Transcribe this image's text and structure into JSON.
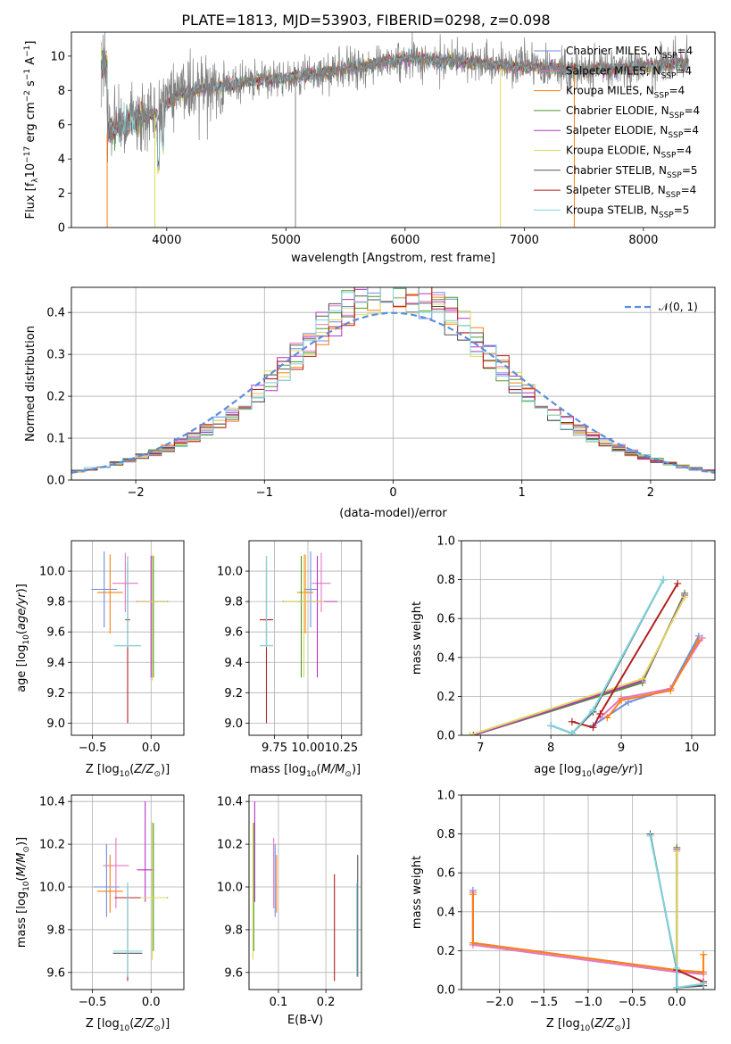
{
  "title": "PLATE=1813, MJD=53903, FIBERID=0298, z=0.098",
  "colors": {
    "Chabrier MILES": "#6b8ee0",
    "Salpeter MILES": "#e377c2",
    "Kroupa MILES": "#ff7f0e",
    "Chabrier ELODIE": "#4e9a2a",
    "Salpeter ELODIE": "#b533c8",
    "Kroupa ELODIE": "#dbdb5a",
    "Chabrier STELIB": "#555555",
    "Salpeter STELIB": "#b22020",
    "Kroupa STELIB": "#7fd4de"
  },
  "legend_spectrum": [
    {
      "label": "Chabrier MILES, N_SSP=4",
      "color": "#6b8ee0"
    },
    {
      "label": "Salpeter MILES, N_SSP=4",
      "color": "#e377c2"
    },
    {
      "label": "Kroupa MILES, N_SSP=4",
      "color": "#ff7f0e"
    },
    {
      "label": "Chabrier ELODIE, N_SSP=4",
      "color": "#4e9a2a"
    },
    {
      "label": "Salpeter ELODIE, N_SSP=4",
      "color": "#b533c8"
    },
    {
      "label": "Kroupa ELODIE, N_SSP=4",
      "color": "#dbdb5a"
    },
    {
      "label": "Chabrier STELIB, N_SSP=5",
      "color": "#555555"
    },
    {
      "label": "Salpeter STELIB, N_SSP=4",
      "color": "#b22020"
    },
    {
      "label": "Kroupa STELIB, N_SSP=5",
      "color": "#7fd4de"
    }
  ],
  "chart_data": [
    {
      "id": "spectrum",
      "type": "line",
      "title": "PLATE=1813, MJD=53903, FIBERID=0298, z=0.098",
      "xlabel": "wavelength [Angstrom, rest frame]",
      "ylabel": "Flux [fλ10^-17 erg cm^-2 s^-1 A^-1]",
      "xlim": [
        3200,
        8600
      ],
      "ylim": [
        0,
        11.4
      ],
      "xticks": [
        4000,
        5000,
        6000,
        7000,
        8000
      ],
      "yticks": [
        0,
        2,
        4,
        6,
        8,
        10
      ],
      "series_profile": {
        "x": [
          3500,
          3700,
          3900,
          4100,
          4300,
          4500,
          4800,
          5100,
          5400,
          5700,
          6000,
          6300,
          6600,
          6900,
          7200,
          7500,
          7800,
          8100,
          8350
        ],
        "y": [
          5.6,
          6.3,
          6.6,
          7.8,
          8.1,
          8.3,
          8.6,
          8.8,
          9.1,
          9.5,
          9.9,
          9.7,
          9.6,
          9.4,
          9.3,
          9.2,
          9.3,
          9.5,
          9.6
        ]
      },
      "data_xrange": [
        3450,
        8380
      ]
    },
    {
      "id": "residuals",
      "type": "line",
      "xlabel": "(data-model)/error",
      "ylabel": "Normed distribution",
      "xlim": [
        -2.5,
        2.5
      ],
      "ylim": [
        0,
        0.46
      ],
      "xticks": [
        -2,
        -1,
        0,
        1,
        2
      ],
      "yticks": [
        0.0,
        0.1,
        0.2,
        0.3,
        0.4
      ],
      "legend": "N(0,1)",
      "gaussian": {
        "mu": 0,
        "sigma": 1,
        "color": "#5b8ee0"
      }
    },
    {
      "id": "age_vs_Z",
      "type": "scatter",
      "xlabel": "Z [log10(Z/Z⊙)]",
      "ylabel": "age  [log10(age/yr)]",
      "xlim": [
        -0.68,
        0.28
      ],
      "ylim": [
        8.92,
        10.2
      ],
      "xticks": [
        -0.5,
        0.0
      ],
      "yticks": [
        9.0,
        9.2,
        9.4,
        9.6,
        9.8,
        10.0
      ],
      "points": [
        {
          "s": "Chabrier MILES",
          "x": -0.4,
          "y": 9.88,
          "xe": 0.22,
          "ye": [
            9.63,
            10.13
          ]
        },
        {
          "s": "Salpeter MILES",
          "x": -0.22,
          "y": 9.92,
          "xe": 0.22,
          "ye": [
            9.73,
            10.12
          ]
        },
        {
          "s": "Kroupa MILES",
          "x": -0.35,
          "y": 9.86,
          "xe": 0.22,
          "ye": [
            9.59,
            10.11
          ]
        },
        {
          "s": "Chabrier ELODIE",
          "x": 0.02,
          "y": 9.8,
          "xe": 0.25,
          "ye": [
            9.3,
            10.1
          ]
        },
        {
          "s": "Salpeter ELODIE",
          "x": 0.0,
          "y": 9.8,
          "xe": 0.25,
          "ye": [
            9.3,
            10.1
          ]
        },
        {
          "s": "Kroupa ELODIE",
          "x": 0.01,
          "y": 9.8,
          "xe": 0.25,
          "ye": [
            9.28,
            10.11
          ]
        },
        {
          "s": "Chabrier STELIB",
          "x": -0.2,
          "y": 9.51,
          "xe": 0.22,
          "ye": [
            9.5,
            10.1
          ]
        },
        {
          "s": "Salpeter STELIB",
          "x": -0.2,
          "y": 9.68,
          "xe": 0.04,
          "ye": [
            9.0,
            10.06
          ]
        },
        {
          "s": "Kroupa STELIB",
          "x": -0.2,
          "y": 9.51,
          "xe": 0.23,
          "ye": [
            9.5,
            10.1
          ]
        }
      ]
    },
    {
      "id": "age_vs_mass",
      "type": "scatter",
      "xlabel": "mass [log10(M/M⊙)]",
      "ylabel": "",
      "xlim": [
        9.56,
        10.4
      ],
      "ylim": [
        8.92,
        10.2
      ],
      "xticks": [
        9.75,
        10.0,
        10.25
      ],
      "yticks": [
        9.0,
        9.2,
        9.4,
        9.6,
        9.8,
        10.0
      ],
      "points": [
        {
          "s": "Chabrier MILES",
          "x": 10.02,
          "y": 9.88,
          "xe": 0.1,
          "ye": [
            9.63,
            10.13
          ]
        },
        {
          "s": "Salpeter MILES",
          "x": 10.1,
          "y": 9.92,
          "xe": 0.14,
          "ye": [
            9.73,
            10.12
          ]
        },
        {
          "s": "Kroupa MILES",
          "x": 9.98,
          "y": 9.86,
          "xe": 0.12,
          "ye": [
            9.59,
            10.11
          ]
        },
        {
          "s": "Chabrier ELODIE",
          "x": 9.95,
          "y": 9.8,
          "xe": 0.28,
          "ye": [
            9.3,
            10.1
          ]
        },
        {
          "s": "Salpeter ELODIE",
          "x": 10.07,
          "y": 9.8,
          "xe": 0.3,
          "ye": [
            9.3,
            10.1
          ]
        },
        {
          "s": "Kroupa ELODIE",
          "x": 9.97,
          "y": 9.8,
          "xe": 0.3,
          "ye": [
            9.3,
            10.11
          ]
        },
        {
          "s": "Chabrier STELIB",
          "x": 9.69,
          "y": 9.51,
          "xe": 0.1,
          "ye": [
            9.5,
            10.1
          ]
        },
        {
          "s": "Salpeter STELIB",
          "x": 9.69,
          "y": 9.68,
          "xe": 0.1,
          "ye": [
            9.0,
            10.06
          ]
        },
        {
          "s": "Kroupa STELIB",
          "x": 9.69,
          "y": 9.51,
          "xe": 0.1,
          "ye": [
            9.5,
            10.1
          ]
        }
      ]
    },
    {
      "id": "weight_vs_age",
      "type": "line",
      "xlabel": "age  [log10(age/yr)]",
      "ylabel": "mass weight",
      "xlim": [
        6.73,
        10.33
      ],
      "ylim": [
        0,
        1.0
      ],
      "xticks": [
        7,
        8,
        9,
        10
      ],
      "yticks": [
        0.0,
        0.2,
        0.4,
        0.6,
        0.8,
        1.0
      ],
      "series": [
        {
          "name": "Chabrier MILES",
          "x": [
            8.6,
            9.1,
            9.7,
            10.1
          ],
          "y": [
            0.05,
            0.17,
            0.24,
            0.51
          ]
        },
        {
          "name": "Salpeter MILES",
          "x": [
            8.7,
            9.0,
            9.7,
            10.15
          ],
          "y": [
            0.09,
            0.19,
            0.24,
            0.5
          ]
        },
        {
          "name": "Kroupa MILES",
          "x": [
            8.8,
            9.0,
            9.7,
            10.1
          ],
          "y": [
            0.09,
            0.18,
            0.23,
            0.49
          ]
        },
        {
          "name": "Chabrier ELODIE",
          "x": [
            6.9,
            9.3,
            9.9
          ],
          "y": [
            0.0,
            0.27,
            0.73
          ]
        },
        {
          "name": "Salpeter ELODIE",
          "x": [
            6.9,
            9.3,
            9.9
          ],
          "y": [
            0.0,
            0.28,
            0.72
          ]
        },
        {
          "name": "Kroupa ELODIE",
          "x": [
            6.85,
            9.3,
            9.9
          ],
          "y": [
            0.0,
            0.29,
            0.71
          ]
        },
        {
          "name": "Chabrier STELIB",
          "x": [
            8.0,
            8.3,
            8.6,
            9.6
          ],
          "y": [
            0.05,
            0.01,
            0.12,
            0.8
          ]
        },
        {
          "name": "Salpeter STELIB",
          "x": [
            8.3,
            8.6,
            8.7,
            9.8
          ],
          "y": [
            0.07,
            0.04,
            0.11,
            0.78
          ]
        },
        {
          "name": "Kroupa STELIB",
          "x": [
            8.0,
            8.3,
            8.6,
            9.6
          ],
          "y": [
            0.05,
            0.01,
            0.13,
            0.8
          ]
        }
      ]
    },
    {
      "id": "mass_vs_Z",
      "type": "scatter",
      "xlabel": "Z [log10(Z/Z⊙)]",
      "ylabel": "mass [log10(M/M⊙)]",
      "xlim": [
        -0.68,
        0.28
      ],
      "ylim": [
        9.52,
        10.43
      ],
      "xticks": [
        -0.5,
        0.0
      ],
      "yticks": [
        9.6,
        9.8,
        10.0,
        10.2,
        10.4
      ],
      "points": [
        {
          "s": "Chabrier MILES",
          "x": -0.38,
          "y": 10.0,
          "xe": 0.22,
          "ye": [
            9.86,
            10.2
          ]
        },
        {
          "s": "Salpeter MILES",
          "x": -0.3,
          "y": 10.1,
          "xe": 0.22,
          "ye": [
            9.9,
            10.23
          ]
        },
        {
          "s": "Kroupa MILES",
          "x": -0.35,
          "y": 9.98,
          "xe": 0.22,
          "ye": [
            9.88,
            10.15
          ]
        },
        {
          "s": "Chabrier ELODIE",
          "x": 0.02,
          "y": 9.95,
          "xe": 0.25,
          "ye": [
            9.7,
            10.3
          ]
        },
        {
          "s": "Salpeter ELODIE",
          "x": -0.05,
          "y": 10.08,
          "xe": 0.14,
          "ye": [
            9.93,
            10.4
          ]
        },
        {
          "s": "Kroupa ELODIE",
          "x": 0.01,
          "y": 9.95,
          "xe": 0.25,
          "ye": [
            9.66,
            10.3
          ]
        },
        {
          "s": "Chabrier STELIB",
          "x": -0.2,
          "y": 9.69,
          "xe": 0.25,
          "ye": [
            9.58,
            10.02
          ]
        },
        {
          "s": "Salpeter STELIB",
          "x": -0.2,
          "y": 9.95,
          "xe": 0.22,
          "ye": [
            9.56,
            10.0
          ]
        },
        {
          "s": "Kroupa STELIB",
          "x": -0.2,
          "y": 9.7,
          "xe": 0.25,
          "ye": [
            9.58,
            10.02
          ]
        }
      ]
    },
    {
      "id": "mass_vs_EBV",
      "type": "scatter",
      "xlabel": "E(B-V)",
      "ylabel": "",
      "xlim": [
        0.038,
        0.275
      ],
      "ylim": [
        9.52,
        10.43
      ],
      "xticks": [
        0.1,
        0.2
      ],
      "yticks": [
        9.6,
        9.8,
        10.0,
        10.2,
        10.4
      ],
      "points": [
        {
          "s": "Chabrier MILES",
          "x": 0.093,
          "ye": [
            9.86,
            10.2
          ]
        },
        {
          "s": "Salpeter MILES",
          "x": 0.09,
          "ye": [
            9.9,
            10.23
          ]
        },
        {
          "s": "Kroupa MILES",
          "x": 0.096,
          "ye": [
            9.88,
            10.15
          ]
        },
        {
          "s": "Chabrier ELODIE",
          "x": 0.048,
          "ye": [
            9.7,
            10.3
          ]
        },
        {
          "s": "Salpeter ELODIE",
          "x": 0.05,
          "ye": [
            9.93,
            10.4
          ]
        },
        {
          "s": "Kroupa ELODIE",
          "x": 0.046,
          "ye": [
            9.66,
            10.3
          ]
        },
        {
          "s": "Chabrier STELIB",
          "x": 0.267,
          "ye": [
            9.58,
            10.15
          ]
        },
        {
          "s": "Salpeter STELIB",
          "x": 0.218,
          "ye": [
            9.56,
            10.06
          ]
        },
        {
          "s": "Kroupa STELIB",
          "x": 0.265,
          "ye": [
            9.58,
            10.02
          ]
        }
      ]
    },
    {
      "id": "weight_vs_Z",
      "type": "line",
      "xlabel": "Z [log10(Z/Z⊙)]",
      "ylabel": "mass weight",
      "xlim": [
        -2.43,
        0.43
      ],
      "ylim": [
        0,
        1.0
      ],
      "xticks": [
        -2.0,
        -1.5,
        -1.0,
        -0.5,
        0.0
      ],
      "yticks": [
        0.0,
        0.2,
        0.4,
        0.6,
        0.8,
        1.0
      ],
      "series": [
        {
          "name": "Chabrier MILES",
          "x": [
            -2.3,
            -2.3,
            0.0,
            0.3
          ],
          "y": [
            0.51,
            0.24,
            0.1,
            0.08
          ]
        },
        {
          "name": "Salpeter MILES",
          "x": [
            -2.3,
            -2.3,
            0.0,
            0.3
          ],
          "y": [
            0.5,
            0.23,
            0.09,
            0.08
          ]
        },
        {
          "name": "Kroupa MILES",
          "x": [
            -2.3,
            -2.3,
            0.0,
            0.3,
            0.3
          ],
          "y": [
            0.49,
            0.24,
            0.1,
            0.09,
            0.18
          ]
        },
        {
          "name": "Chabrier ELODIE",
          "x": [
            0.0,
            0.0
          ],
          "y": [
            0.73,
            0.0
          ]
        },
        {
          "name": "Salpeter ELODIE",
          "x": [
            0.0,
            0.0
          ],
          "y": [
            0.72,
            0.0
          ]
        },
        {
          "name": "Kroupa ELODIE",
          "x": [
            0.0,
            0.0
          ],
          "y": [
            0.71,
            0.0
          ]
        },
        {
          "name": "Chabrier STELIB",
          "x": [
            -0.3,
            0.0,
            0.0,
            0.3
          ],
          "y": [
            0.8,
            0.1,
            0.01,
            0.02
          ]
        },
        {
          "name": "Salpeter STELIB",
          "x": [
            0.0,
            0.3
          ],
          "y": [
            0.1,
            0.04
          ]
        },
        {
          "name": "Kroupa STELIB",
          "x": [
            -0.3,
            0.0,
            0.0,
            0.3
          ],
          "y": [
            0.79,
            0.11,
            0.01,
            0.03
          ]
        }
      ]
    }
  ]
}
